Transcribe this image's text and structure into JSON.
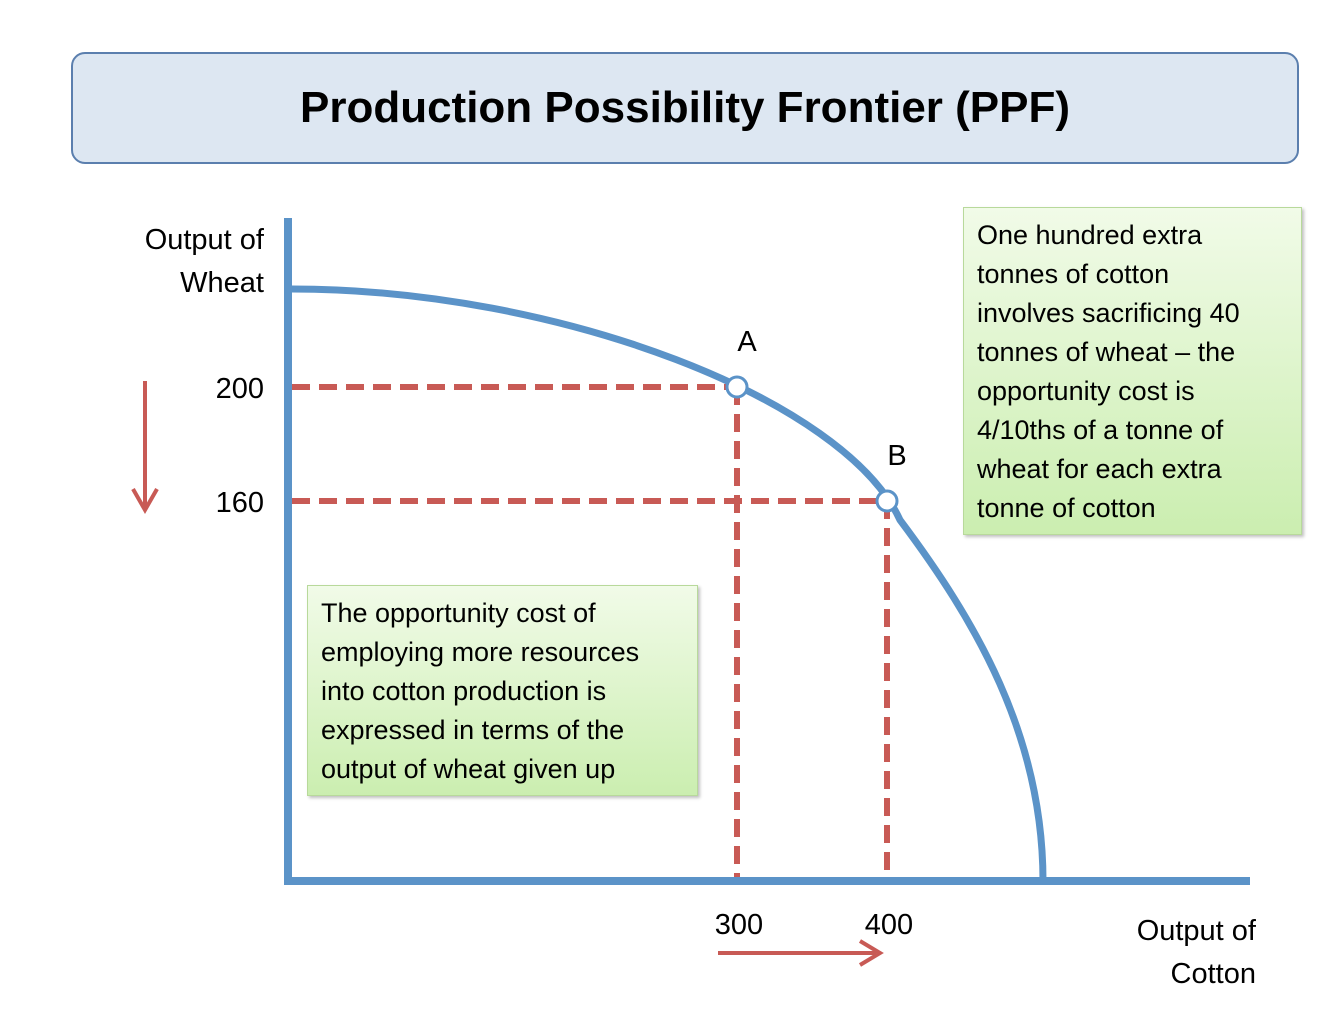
{
  "title": "Production Possibility Frontier (PPF)",
  "chart_data": {
    "type": "line",
    "ylabel": "Output of\nWheat",
    "xlabel": "Output of\nCotton",
    "y_ticks": [
      200,
      160
    ],
    "x_ticks": [
      300,
      400
    ],
    "points": [
      {
        "label": "A",
        "x": 300,
        "y": 200
      },
      {
        "label": "B",
        "x": 400,
        "y": 160
      }
    ],
    "annotations": [
      "One hundred extra\ntonnes of cotton\ninvolves sacrificing 40\ntonnes of wheat – the\nopportunity cost is\n4/10ths of a tonne of\nwheat for each extra\ntonne of cotton",
      "The opportunity cost of\nemploying more resources\ninto cotton production is\nexpressed in terms of the\noutput of wheat given up"
    ],
    "colors": {
      "axis": "#5b93c8",
      "curve": "#5b93c8",
      "dashed": "#c85a55",
      "arrow": "#c85a55"
    }
  }
}
